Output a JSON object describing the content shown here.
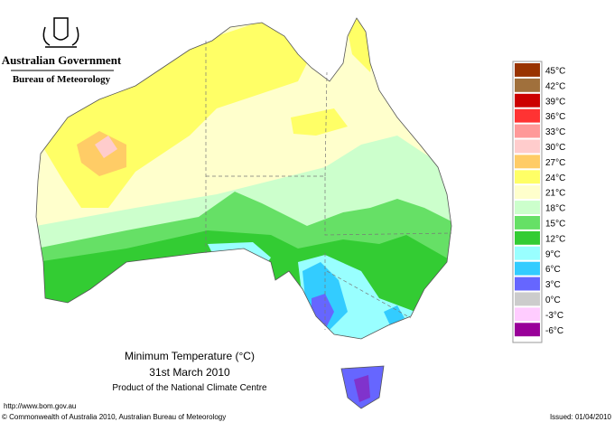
{
  "header": {
    "government": "Australian Government",
    "agency": "Bureau of Meteorology"
  },
  "map": {
    "title": "Minimum Temperature (°C)",
    "date": "31st March 2010",
    "producer": "Product of the National Climate Centre"
  },
  "legend": {
    "items": [
      {
        "label": "45°C",
        "color": "#993300"
      },
      {
        "label": "42°C",
        "color": "#a0703c"
      },
      {
        "label": "39°C",
        "color": "#cc0000"
      },
      {
        "label": "36°C",
        "color": "#ff3333"
      },
      {
        "label": "33°C",
        "color": "#ff9999"
      },
      {
        "label": "30°C",
        "color": "#ffcccc"
      },
      {
        "label": "27°C",
        "color": "#ffcc66"
      },
      {
        "label": "24°C",
        "color": "#ffff66"
      },
      {
        "label": "21°C",
        "color": "#ffffcc"
      },
      {
        "label": "18°C",
        "color": "#ccffcc"
      },
      {
        "label": "15°C",
        "color": "#66e066"
      },
      {
        "label": "12°C",
        "color": "#33cc33"
      },
      {
        "label": "9°C",
        "color": "#99ffff"
      },
      {
        "label": "6°C",
        "color": "#33ccff"
      },
      {
        "label": "3°C",
        "color": "#6666ff"
      },
      {
        "label": "0°C",
        "color": "#cccccc"
      },
      {
        "label": "-3°C",
        "color": "#ffccff"
      },
      {
        "label": "-6°C",
        "color": "#990099"
      }
    ]
  },
  "footer": {
    "url": "http://www.bom.gov.au",
    "copyright": "© Commonwealth of Australia 2010, Australian Bureau of Meteorology",
    "issued": "Issued: 01/04/2010"
  }
}
